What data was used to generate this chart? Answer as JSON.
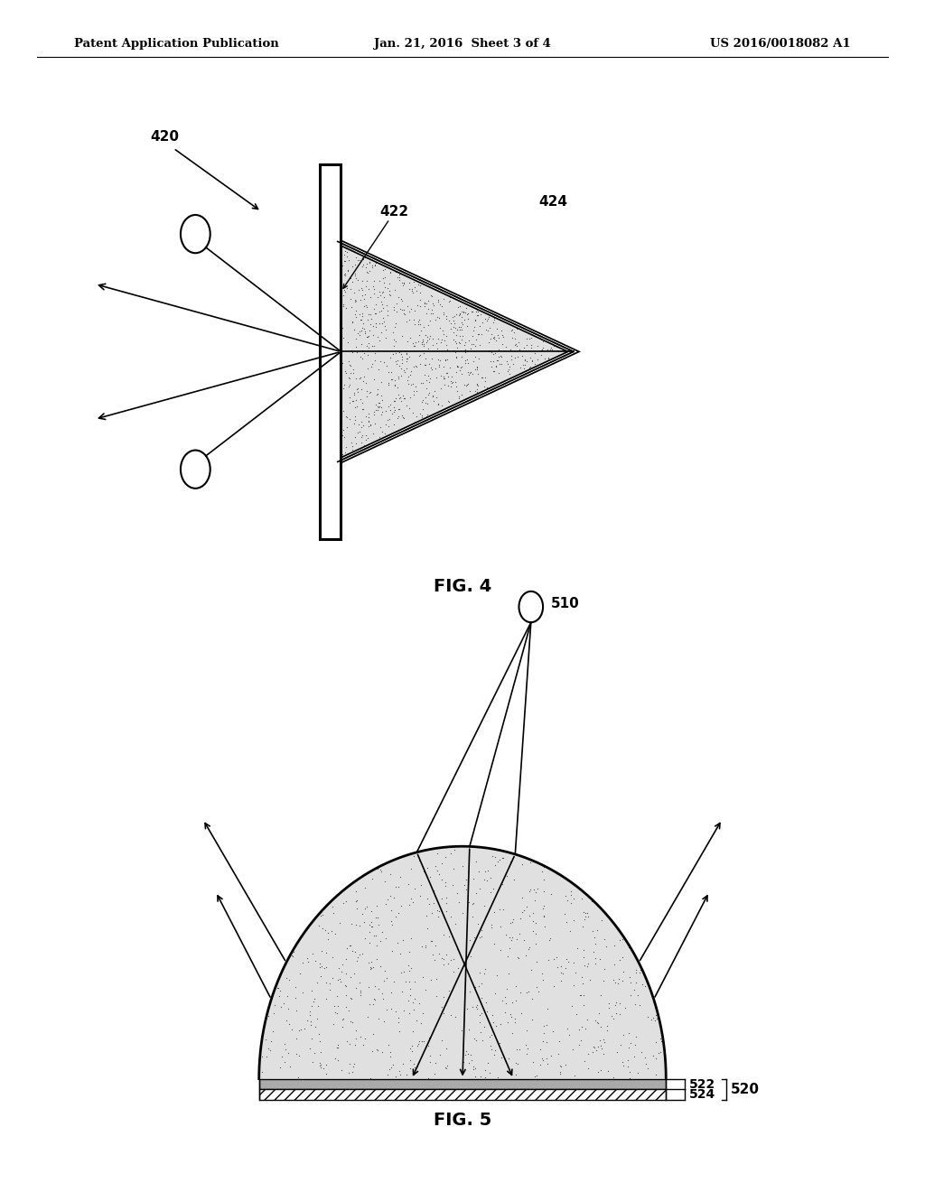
{
  "bg_color": "#ffffff",
  "header_left": "Patent Application Publication",
  "header_center": "Jan. 21, 2016  Sheet 3 of 4",
  "header_right": "US 2016/0018082 A1",
  "fig4_label": "FIG. 4",
  "fig5_label": "FIG. 5",
  "fig4": {
    "label_420": "420",
    "label_422": "422",
    "label_424": "424"
  },
  "fig5": {
    "label_510": "510",
    "label_520": "520",
    "label_522": "522",
    "label_524": "524"
  }
}
